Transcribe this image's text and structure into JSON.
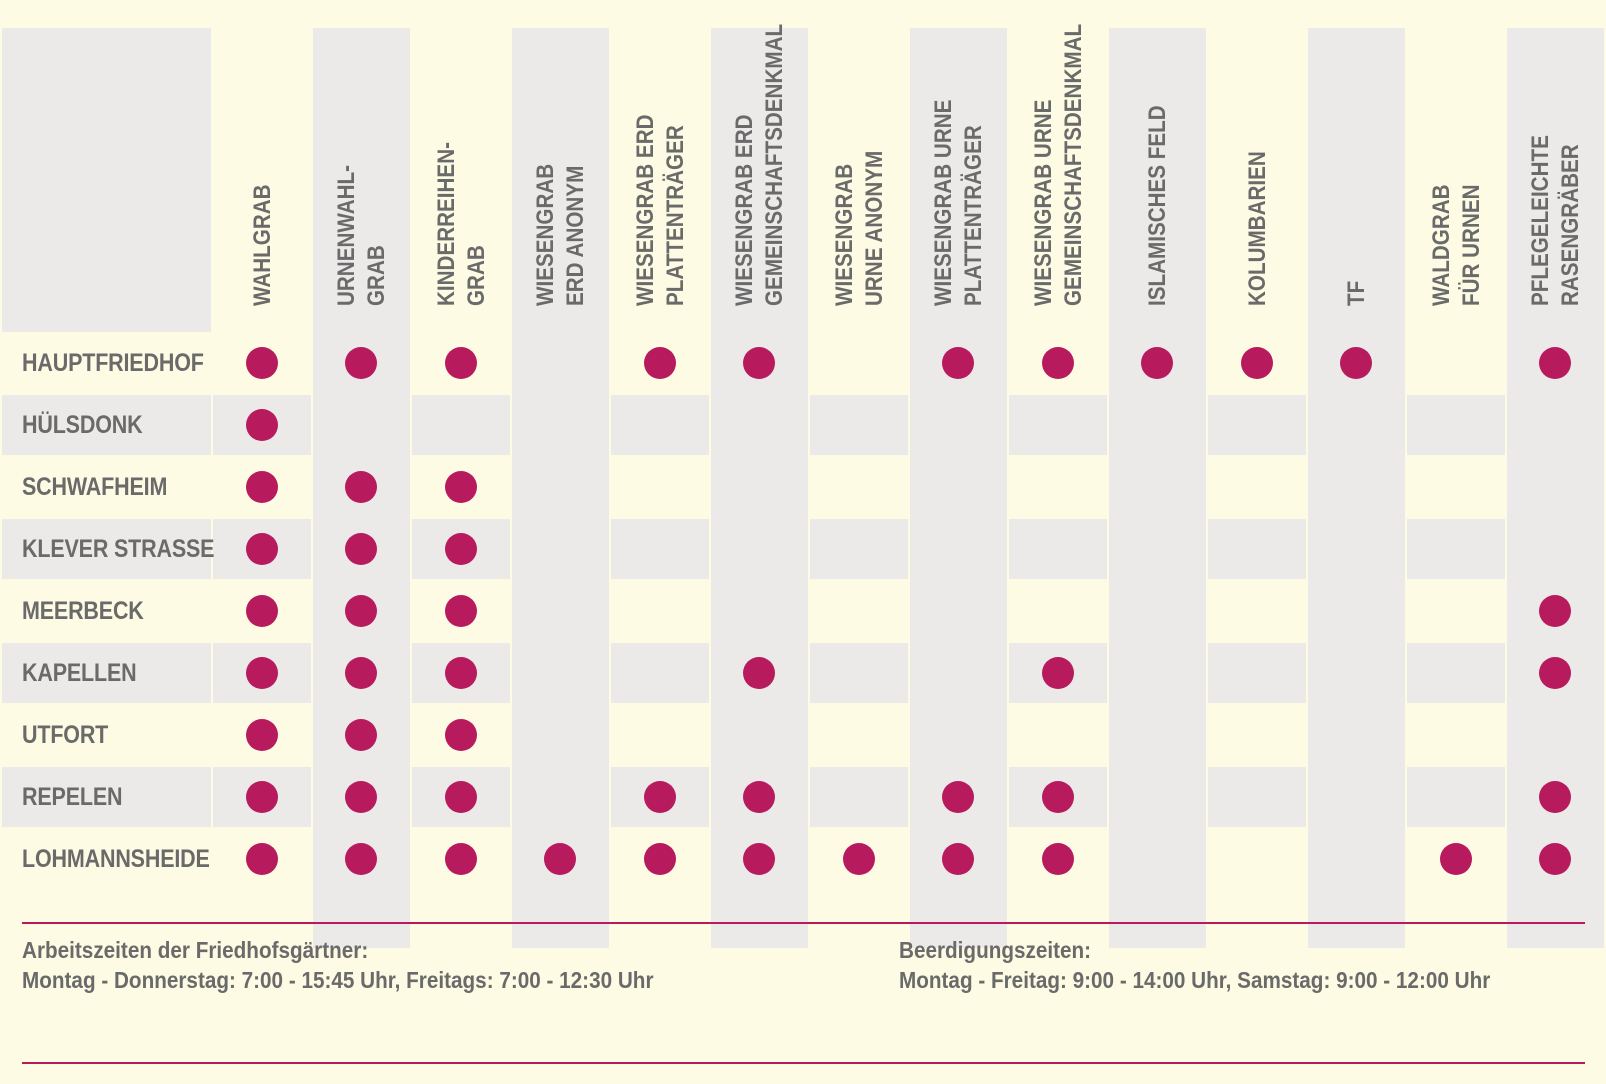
{
  "table": {
    "columns": [
      [
        "WAHLGRAB"
      ],
      [
        "URNENWAHL-",
        "GRAB"
      ],
      [
        "KINDERREIHEN-",
        "GRAB"
      ],
      [
        "WIESENGRAB",
        "ERD ANONYM"
      ],
      [
        "WIESENGRAB ERD",
        "PLATTENTRÄGER"
      ],
      [
        "WIESENGRAB ERD",
        "GEMEINSCHAFTSDENKMAL"
      ],
      [
        "WIESENGRAB",
        "URNE ANONYM"
      ],
      [
        "WIESENGRAB URNE",
        "PLATTENTRÄGER"
      ],
      [
        "WIESENGRAB URNE",
        "GEMEINSCHAFTSDENKMAL"
      ],
      [
        "ISLAMISCHES FELD"
      ],
      [
        "KOLUMBARIEN"
      ],
      [
        "TF"
      ],
      [
        "WALDGRAB",
        "FÜR URNEN"
      ],
      [
        "PFLEGELEICHTE",
        "RASENGRÄBER"
      ]
    ],
    "rows": [
      {
        "label": "HAUPTFRIEDHOF",
        "marks": [
          1,
          1,
          1,
          0,
          1,
          1,
          0,
          1,
          1,
          1,
          1,
          1,
          0,
          1
        ]
      },
      {
        "label": "HÜLSDONK",
        "marks": [
          1,
          0,
          0,
          0,
          0,
          0,
          0,
          0,
          0,
          0,
          0,
          0,
          0,
          0
        ]
      },
      {
        "label": "SCHWAFHEIM",
        "marks": [
          1,
          1,
          1,
          0,
          0,
          0,
          0,
          0,
          0,
          0,
          0,
          0,
          0,
          0
        ]
      },
      {
        "label": "KLEVER STRASSE",
        "marks": [
          1,
          1,
          1,
          0,
          0,
          0,
          0,
          0,
          0,
          0,
          0,
          0,
          0,
          0
        ]
      },
      {
        "label": "MEERBECK",
        "marks": [
          1,
          1,
          1,
          0,
          0,
          0,
          0,
          0,
          0,
          0,
          0,
          0,
          0,
          1
        ]
      },
      {
        "label": "KAPELLEN",
        "marks": [
          1,
          1,
          1,
          0,
          0,
          1,
          0,
          0,
          1,
          0,
          0,
          0,
          0,
          1
        ]
      },
      {
        "label": "UTFORT",
        "marks": [
          1,
          1,
          1,
          0,
          0,
          0,
          0,
          0,
          0,
          0,
          0,
          0,
          0,
          0
        ]
      },
      {
        "label": "REPELEN",
        "marks": [
          1,
          1,
          1,
          0,
          1,
          1,
          0,
          1,
          1,
          0,
          0,
          0,
          0,
          1
        ]
      },
      {
        "label": "LOHMANNSHEIDE",
        "marks": [
          1,
          1,
          1,
          1,
          1,
          1,
          1,
          1,
          1,
          0,
          0,
          0,
          1,
          1
        ]
      }
    ],
    "mark_color": "#b71a5d",
    "band_color": "#ebeae8",
    "background": "#fdfbe3"
  },
  "footer": {
    "left_title": "Arbeitszeiten der Friedhofsgärtner:",
    "left_text": "Montag - Donnerstag: 7:00 - 15:45 Uhr, Freitags: 7:00 - 12:30 Uhr",
    "right_title": "Beerdigungszeiten:",
    "right_text": "Montag - Freitag: 9:00 - 14:00 Uhr, Samstag: 9:00 - 12:00 Uhr"
  }
}
